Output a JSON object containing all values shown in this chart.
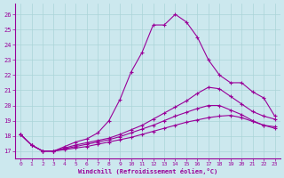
{
  "xlabel": "Windchill (Refroidissement éolien,°C)",
  "bg_color": "#cce8ee",
  "line_color": "#990099",
  "grid_color": "#aad4d8",
  "xlim": [
    -0.5,
    23.5
  ],
  "ylim": [
    16.5,
    26.7
  ],
  "xticks": [
    0,
    1,
    2,
    3,
    4,
    5,
    6,
    7,
    8,
    9,
    10,
    11,
    12,
    13,
    14,
    15,
    16,
    17,
    18,
    19,
    20,
    21,
    22,
    23
  ],
  "yticks": [
    17,
    18,
    19,
    20,
    21,
    22,
    23,
    24,
    25,
    26
  ],
  "line1_x": [
    0,
    1,
    2,
    3,
    4,
    5,
    6,
    7,
    8,
    9,
    10,
    11,
    12,
    13,
    14,
    15,
    16,
    17,
    18,
    19,
    20,
    21,
    22,
    23
  ],
  "line1_y": [
    18.1,
    17.4,
    17.0,
    17.0,
    17.3,
    17.6,
    17.8,
    18.2,
    19.0,
    20.4,
    22.2,
    23.5,
    25.3,
    25.3,
    26.0,
    25.5,
    24.5,
    23.0,
    22.0,
    21.5,
    21.5,
    20.9,
    20.5,
    19.3
  ],
  "line2_x": [
    0,
    1,
    2,
    3,
    4,
    5,
    6,
    7,
    8,
    9,
    10,
    11,
    12,
    13,
    14,
    15,
    16,
    17,
    18,
    19,
    20,
    21,
    22,
    23
  ],
  "line2_y": [
    18.1,
    17.4,
    17.0,
    17.0,
    17.2,
    17.4,
    17.55,
    17.7,
    17.85,
    18.1,
    18.4,
    18.7,
    19.1,
    19.5,
    19.9,
    20.3,
    20.8,
    21.2,
    21.1,
    20.6,
    20.1,
    19.6,
    19.3,
    19.1
  ],
  "line3_x": [
    0,
    1,
    2,
    3,
    4,
    5,
    6,
    7,
    8,
    9,
    10,
    11,
    12,
    13,
    14,
    15,
    16,
    17,
    18,
    19,
    20,
    21,
    22,
    23
  ],
  "line3_y": [
    18.1,
    17.4,
    17.0,
    17.0,
    17.15,
    17.3,
    17.45,
    17.6,
    17.75,
    17.95,
    18.2,
    18.45,
    18.7,
    19.0,
    19.3,
    19.55,
    19.8,
    20.0,
    20.0,
    19.7,
    19.4,
    19.0,
    18.7,
    18.5
  ],
  "line4_x": [
    0,
    1,
    2,
    3,
    4,
    5,
    6,
    7,
    8,
    9,
    10,
    11,
    12,
    13,
    14,
    15,
    16,
    17,
    18,
    19,
    20,
    21,
    22,
    23
  ],
  "line4_y": [
    18.1,
    17.4,
    17.0,
    17.0,
    17.1,
    17.2,
    17.3,
    17.45,
    17.6,
    17.75,
    17.9,
    18.1,
    18.3,
    18.5,
    18.7,
    18.9,
    19.05,
    19.2,
    19.3,
    19.35,
    19.2,
    18.95,
    18.7,
    18.6
  ]
}
